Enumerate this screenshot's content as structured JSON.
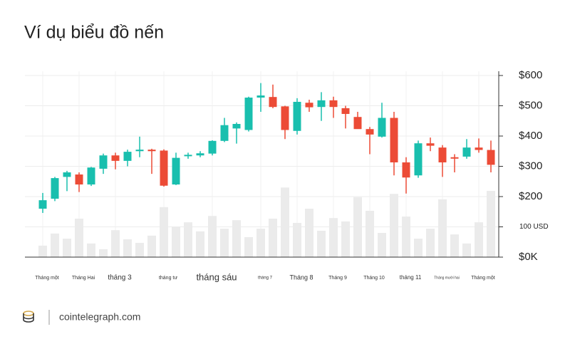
{
  "chart_data": {
    "type": "candlestick",
    "title": "Ví dụ biểu đồ nến",
    "categories": [
      "Tháng một",
      null,
      null,
      "Tháng Hai",
      null,
      null,
      "tháng 3",
      null,
      null,
      null,
      "tháng tư",
      null,
      null,
      null,
      "tháng sáu",
      null,
      null,
      null,
      "tháng 7",
      null,
      null,
      "Tháng 8",
      null,
      null,
      "Tháng 9",
      null,
      null,
      "Tháng 10",
      null,
      null,
      "tháng 11",
      null,
      null,
      "Tháng mười hai",
      null,
      null,
      "Tháng một",
      null
    ],
    "open": [
      160,
      193,
      265,
      273,
      240,
      292,
      336,
      318,
      350,
      355,
      352,
      240,
      335,
      336,
      342,
      384,
      425,
      420,
      527,
      529,
      498,
      417,
      510,
      496,
      518,
      492,
      463,
      423,
      398,
      460,
      313,
      270,
      376,
      362,
      330,
      332,
      362,
      354
    ],
    "high": [
      212,
      265,
      285,
      280,
      298,
      342,
      345,
      355,
      398,
      358,
      356,
      345,
      345,
      350,
      386,
      460,
      445,
      530,
      575,
      570,
      500,
      525,
      520,
      545,
      530,
      500,
      480,
      430,
      510,
      480,
      330,
      385,
      395,
      370,
      340,
      390,
      392,
      385
    ],
    "low": [
      146,
      185,
      218,
      215,
      235,
      275,
      290,
      300,
      330,
      275,
      233,
      238,
      325,
      330,
      336,
      380,
      375,
      415,
      480,
      492,
      390,
      405,
      480,
      450,
      460,
      425,
      425,
      340,
      395,
      270,
      210,
      262,
      350,
      265,
      280,
      325,
      345,
      280
    ],
    "close": [
      188,
      261,
      280,
      240,
      296,
      336,
      318,
      348,
      355,
      350,
      236,
      328,
      338,
      343,
      384,
      436,
      440,
      527,
      534,
      496,
      420,
      513,
      495,
      518,
      496,
      473,
      423,
      405,
      460,
      313,
      263,
      376,
      368,
      313,
      327,
      362,
      354,
      305
    ],
    "volume": [
      38,
      78,
      61,
      127,
      45,
      26,
      89,
      59,
      47,
      71,
      165,
      99,
      115,
      85,
      136,
      94,
      122,
      66,
      94,
      127,
      230,
      113,
      160,
      87,
      129,
      118,
      198,
      153,
      80,
      209,
      134,
      61,
      94,
      191,
      75,
      45,
      115,
      219
    ],
    "colors": {
      "up": "#19bfae",
      "down": "#ec4b36",
      "volume": "#ebebeb"
    },
    "ylim": [
      0,
      600
    ],
    "yticks": [
      {
        "value": 0,
        "label": "$0K"
      },
      {
        "value": 100,
        "label": "100 USD"
      },
      {
        "value": 200,
        "label": "$200"
      },
      {
        "value": 300,
        "label": "$300"
      },
      {
        "value": 400,
        "label": "$400"
      },
      {
        "value": 500,
        "label": "$500"
      },
      {
        "value": 600,
        "label": "$600"
      }
    ],
    "grid": true
  },
  "footer": {
    "site": "cointelegraph.com"
  }
}
